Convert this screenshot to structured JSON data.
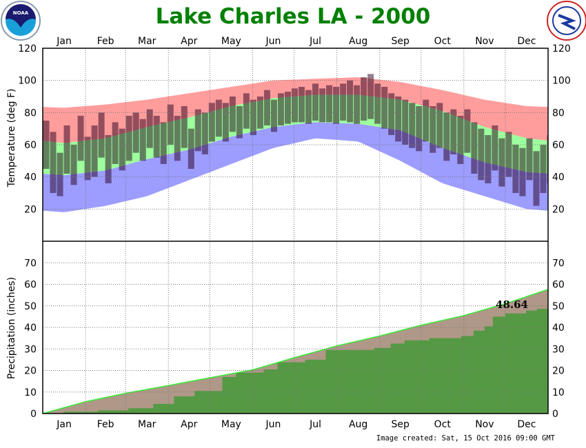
{
  "chart_data": [
    {
      "type": "bar",
      "title": "Lake Charles LA - 2000",
      "ylabel": "Temperature (deg F)",
      "ylim": [
        0,
        120
      ],
      "yticks": [
        20,
        40,
        60,
        80,
        100,
        120
      ],
      "months": [
        "Jan",
        "Feb",
        "Mar",
        "Apr",
        "May",
        "Jun",
        "Jul",
        "Aug",
        "Sep",
        "Oct",
        "Nov",
        "Dec"
      ],
      "month_start_days": [
        0,
        31,
        60,
        91,
        121,
        152,
        182,
        213,
        244,
        274,
        305,
        335,
        366
      ],
      "colors": {
        "record_high_band": "#ff9d9d",
        "normal_band": "#9dff9d",
        "record_low_band": "#9d9dff",
        "observed": "rgba(40,0,30,0.5)"
      },
      "monthly_mid_normal_high": [
        61,
        64,
        71,
        77,
        84,
        89,
        91,
        91,
        88,
        81,
        71,
        64
      ],
      "monthly_mid_normal_low": [
        41,
        44,
        51,
        57,
        65,
        71,
        74,
        73,
        69,
        58,
        49,
        43
      ],
      "monthly_mid_record_high": [
        83,
        85,
        88,
        92,
        96,
        100,
        101,
        102,
        99,
        94,
        88,
        84
      ],
      "monthly_mid_record_low": [
        18,
        22,
        28,
        38,
        48,
        58,
        64,
        62,
        50,
        36,
        28,
        20
      ],
      "observed_sample_interval_days": 5,
      "observed_high": [
        75,
        68,
        55,
        72,
        60,
        78,
        65,
        72,
        80,
        66,
        74,
        70,
        78,
        80,
        76,
        82,
        78,
        74,
        85,
        78,
        84,
        70,
        82,
        80,
        86,
        88,
        86,
        90,
        84,
        92,
        88,
        90,
        94,
        88,
        92,
        93,
        95,
        96,
        94,
        98,
        95,
        97,
        96,
        98,
        100,
        97,
        102,
        104,
        98,
        96,
        92,
        90,
        88,
        86,
        84,
        88,
        84,
        86,
        80,
        82,
        78,
        82,
        74,
        70,
        66,
        72,
        64,
        68,
        60,
        58,
        64,
        56,
        60,
        66
      ],
      "observed_low": [
        45,
        30,
        28,
        42,
        35,
        50,
        38,
        40,
        52,
        36,
        48,
        44,
        50,
        55,
        50,
        58,
        52,
        48,
        60,
        50,
        58,
        45,
        56,
        54,
        62,
        65,
        62,
        68,
        64,
        70,
        66,
        70,
        72,
        68,
        72,
        73,
        74,
        74,
        73,
        75,
        74,
        74,
        73,
        75,
        74,
        73,
        75,
        76,
        73,
        70,
        66,
        62,
        60,
        58,
        56,
        62,
        55,
        58,
        50,
        54,
        48,
        55,
        42,
        38,
        36,
        44,
        34,
        40,
        30,
        28,
        38,
        22,
        30,
        36
      ]
    },
    {
      "type": "area",
      "ylabel": "Precipitation (inches)",
      "ylim": [
        0,
        80
      ],
      "yticks": [
        0,
        10,
        20,
        30,
        40,
        50,
        60,
        70
      ],
      "colors": {
        "normal": "#b09888",
        "observed": "#559944",
        "normal_line": "#33ee33"
      },
      "normal_cumulative_month_end": [
        0,
        5.5,
        9.4,
        13.0,
        16.6,
        20.3,
        25.9,
        31.4,
        36.0,
        41.0,
        45.5,
        51.0,
        57.6
      ],
      "observed_cumulative_steps": [
        [
          0,
          0
        ],
        [
          15,
          0.8
        ],
        [
          40,
          1.5
        ],
        [
          62,
          2.5
        ],
        [
          80,
          4.5
        ],
        [
          95,
          8.0
        ],
        [
          110,
          10.5
        ],
        [
          130,
          17.0
        ],
        [
          140,
          19.0
        ],
        [
          160,
          20.5
        ],
        [
          170,
          23.8
        ],
        [
          190,
          25.0
        ],
        [
          205,
          29.5
        ],
        [
          240,
          30.5
        ],
        [
          252,
          32.5
        ],
        [
          262,
          34.0
        ],
        [
          280,
          35.0
        ],
        [
          303,
          36.0
        ],
        [
          312,
          38.5
        ],
        [
          320,
          40.5
        ],
        [
          326,
          45.0
        ],
        [
          335,
          46.5
        ],
        [
          350,
          47.8
        ],
        [
          358,
          48.64
        ],
        [
          366,
          48.64
        ]
      ],
      "annotation": "48.64"
    }
  ],
  "footer": "Image created: Sat, 15 Oct 2016 09:00 GMT",
  "logos": {
    "left": "NOAA",
    "right": "NATIONAL WEATHER SERVICE"
  }
}
